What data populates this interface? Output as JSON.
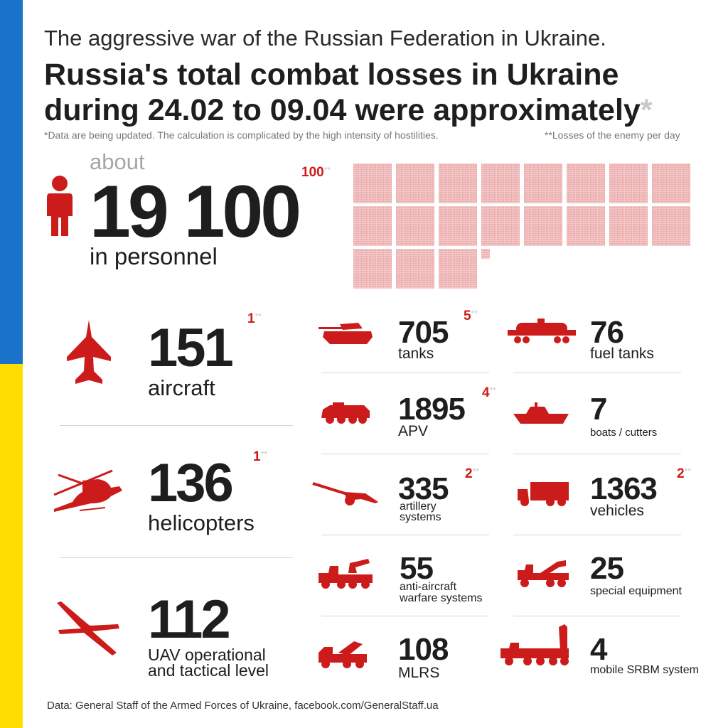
{
  "header": {
    "kicker": "The aggressive war of the Russian Federation in Ukraine.",
    "title_line1": "Russia's total combat losses in Ukraine",
    "title_line2": "during 24.02 to 09.04 were approximately",
    "title_star": "*"
  },
  "notes": {
    "data_note": "*Data are being updated. The calculation is complicated by the high intensity of hostilities.",
    "daily_note": "**Losses of the enemy per day"
  },
  "personnel": {
    "about": "about",
    "value": "19 100",
    "label": "in personnel",
    "daily": "100",
    "daily_mark": "**",
    "grid_count": 19100
  },
  "left_items": [
    {
      "value": "151",
      "label": "aircraft",
      "daily": "1",
      "mark": "**",
      "icon": "fighter-jet-icon"
    },
    {
      "value": "136",
      "label": "helicopters",
      "daily": "1",
      "mark": "**",
      "icon": "helicopter-icon"
    },
    {
      "value": "112",
      "label_line1": "UAV operational",
      "label_line2": "and tactical level",
      "icon": "drone-icon"
    }
  ],
  "mid_items": [
    {
      "value": "705",
      "label": "tanks",
      "daily": "5",
      "mark": "**",
      "icon": "tank-icon"
    },
    {
      "value": "1895",
      "label": "APV",
      "daily": "4",
      "mark": "**",
      "icon": "apv-icon"
    },
    {
      "value": "335",
      "label_line1": "artillery",
      "label_line2": "systems",
      "daily": "2",
      "mark": "**",
      "icon": "artillery-icon"
    },
    {
      "value": "55",
      "label_line1": "anti-aircraft",
      "label_line2": "warfare systems",
      "icon": "anti-aircraft-icon"
    },
    {
      "value": "108",
      "label": "MLRS",
      "icon": "mlrs-icon"
    }
  ],
  "right_items": [
    {
      "value": "76",
      "label": "fuel tanks",
      "icon": "fuel-tank-icon"
    },
    {
      "value": "7",
      "label": "boats / cutters",
      "icon": "boat-icon"
    },
    {
      "value": "1363",
      "label": "vehicles",
      "daily": "2",
      "mark": "**",
      "icon": "truck-icon"
    },
    {
      "value": "25",
      "label": "special equipment",
      "icon": "special-equipment-icon"
    },
    {
      "value": "4",
      "label": "mobile SRBM system",
      "icon": "srbm-launcher-icon"
    }
  ],
  "footer": "Data: General Staff of the Armed Forces of Ukraine, facebook.com/GeneralStaff.ua",
  "colors": {
    "accent": "#cc1b1b",
    "flag_blue": "#1a73c8",
    "flag_yellow": "#ffdd00",
    "text": "#1e1e1e"
  }
}
